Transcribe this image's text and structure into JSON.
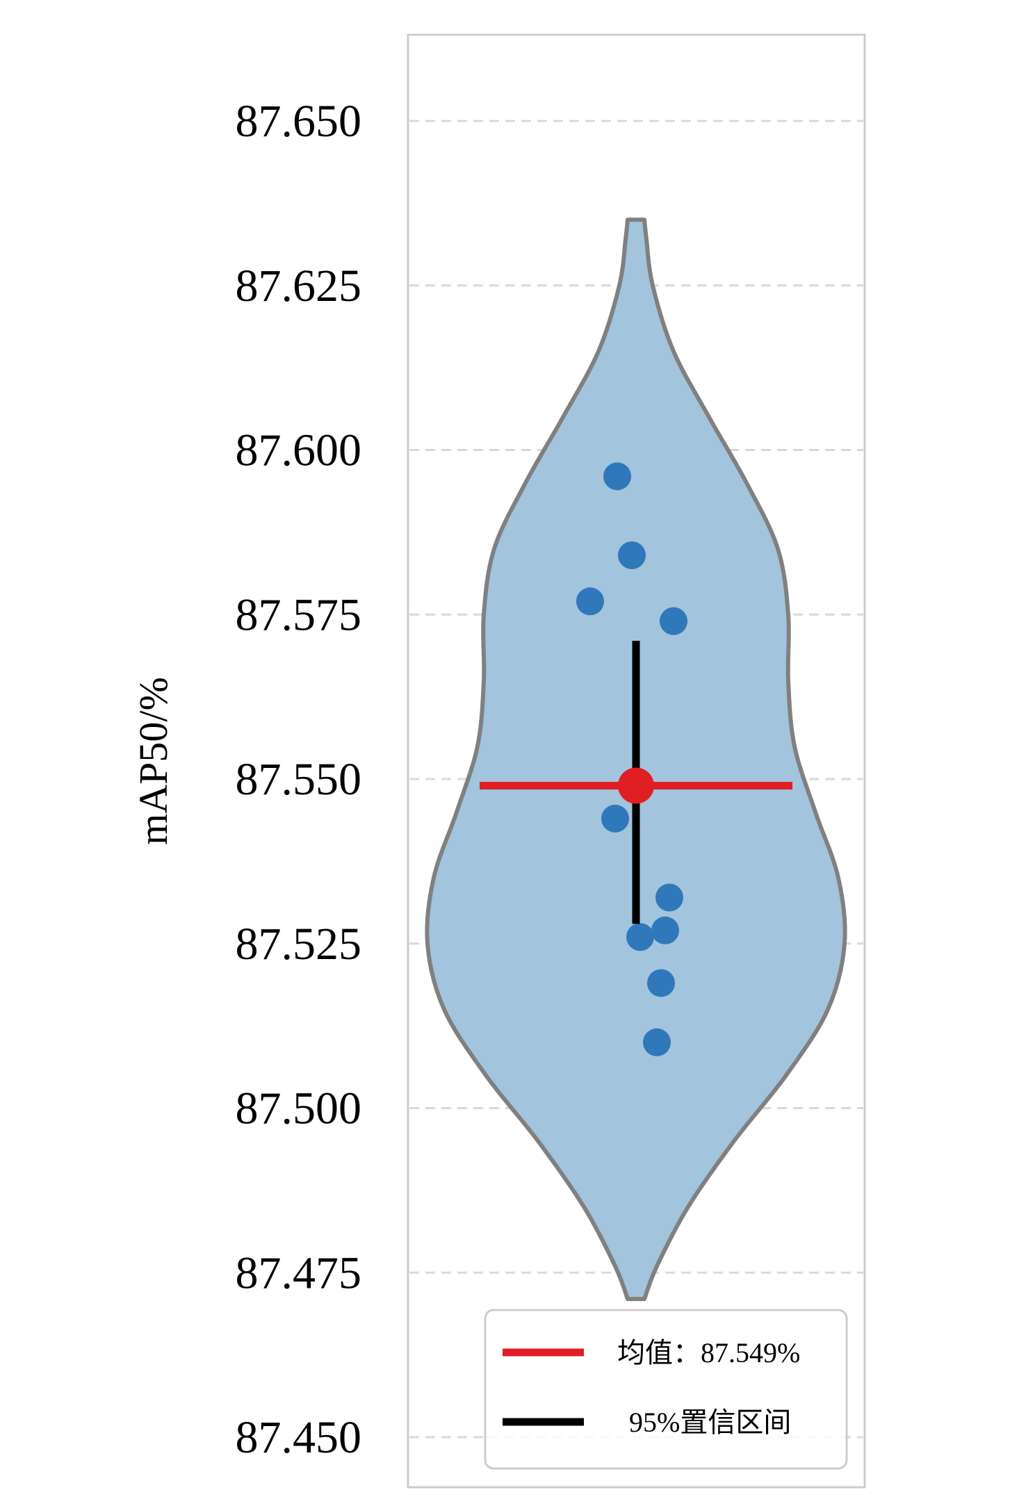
{
  "chart_data": {
    "type": "violin",
    "ylabel": "mAP50/%",
    "ylim": [
      87.445,
      87.66
    ],
    "yticks": [
      87.45,
      87.475,
      87.5,
      87.525,
      87.55,
      87.575,
      87.6,
      87.625,
      87.65
    ],
    "ytick_labels": [
      "87.450",
      "87.475",
      "87.500",
      "87.525",
      "87.550",
      "87.575",
      "87.600",
      "87.625",
      "87.650"
    ],
    "grid": true,
    "violin": {
      "range": [
        87.471,
        87.635
      ],
      "density_profile": [
        {
          "y": 87.471,
          "w": 0.04
        },
        {
          "y": 87.476,
          "w": 0.1
        },
        {
          "y": 87.485,
          "w": 0.25
        },
        {
          "y": 87.495,
          "w": 0.47
        },
        {
          "y": 87.505,
          "w": 0.72
        },
        {
          "y": 87.515,
          "w": 0.92
        },
        {
          "y": 87.525,
          "w": 1.0
        },
        {
          "y": 87.535,
          "w": 0.97
        },
        {
          "y": 87.545,
          "w": 0.86
        },
        {
          "y": 87.555,
          "w": 0.76
        },
        {
          "y": 87.565,
          "w": 0.73
        },
        {
          "y": 87.575,
          "w": 0.73
        },
        {
          "y": 87.585,
          "w": 0.68
        },
        {
          "y": 87.595,
          "w": 0.53
        },
        {
          "y": 87.605,
          "w": 0.35
        },
        {
          "y": 87.615,
          "w": 0.18
        },
        {
          "y": 87.625,
          "w": 0.08
        },
        {
          "y": 87.632,
          "w": 0.05
        },
        {
          "y": 87.635,
          "w": 0.04
        }
      ]
    },
    "points": [
      {
        "x": -0.09,
        "y": 87.596
      },
      {
        "x": -0.02,
        "y": 87.584
      },
      {
        "x": -0.22,
        "y": 87.577
      },
      {
        "x": 0.18,
        "y": 87.574
      },
      {
        "x": -0.1,
        "y": 87.544
      },
      {
        "x": 0.16,
        "y": 87.532
      },
      {
        "x": 0.14,
        "y": 87.527
      },
      {
        "x": 0.02,
        "y": 87.526
      },
      {
        "x": 0.12,
        "y": 87.519
      },
      {
        "x": 0.1,
        "y": 87.51
      }
    ],
    "mean": 87.549,
    "ci95": [
      87.528,
      87.571
    ],
    "colors": {
      "violin_fill": "#a2c4dc",
      "violin_edge": "#808080",
      "points": "#2f78b9",
      "mean": "#e01e23",
      "ci": "#000000",
      "grid": "#d9d9d9",
      "frame": "#cccccc"
    },
    "legend": {
      "location": "lower right",
      "entries": [
        {
          "label": "均值：87.549%",
          "color": "#e01e23"
        },
        {
          "label": "95%置信区间",
          "color": "#000000"
        }
      ]
    }
  }
}
